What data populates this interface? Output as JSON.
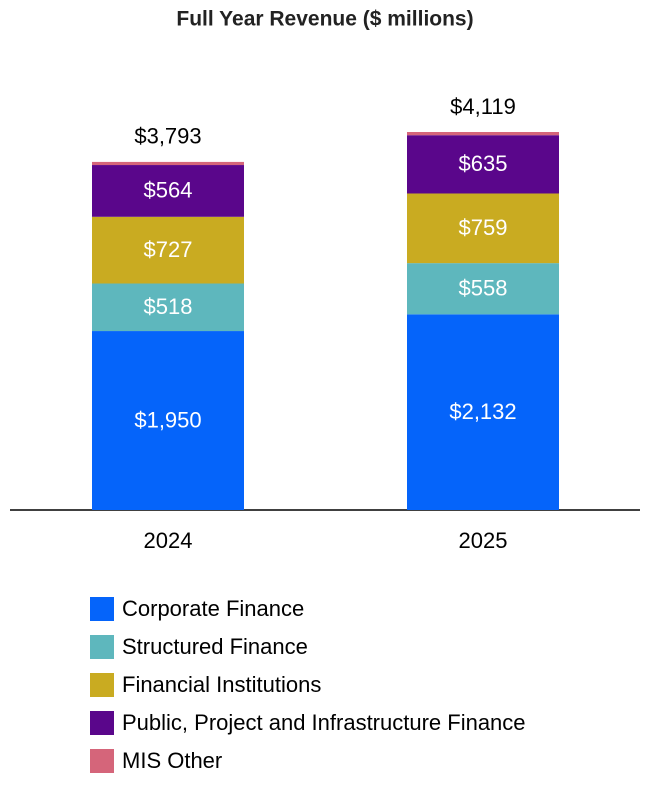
{
  "chart_data": {
    "type": "stacked-bar",
    "title": "Full Year Revenue ($ millions)",
    "categories": [
      "2024",
      "2025"
    ],
    "series": [
      {
        "name": "Corporate Finance",
        "color": "#0564fa",
        "values": [
          1950,
          2132
        ],
        "value_labels": [
          "$1,950",
          "$2,132"
        ]
      },
      {
        "name": "Structured Finance",
        "color": "#5eb7bd",
        "values": [
          518,
          558
        ],
        "value_labels": [
          "$518",
          "$558"
        ]
      },
      {
        "name": "Financial Institutions",
        "color": "#c9ab21",
        "values": [
          727,
          759
        ],
        "value_labels": [
          "$727",
          "$759"
        ]
      },
      {
        "name": "Public, Project and Infrastructure Finance",
        "color": "#5a068b",
        "values": [
          564,
          635
        ],
        "value_labels": [
          "$564",
          "$635"
        ]
      },
      {
        "name": "MIS Other",
        "color": "#d5657a",
        "values": [
          34,
          35
        ]
      }
    ],
    "totals": [
      3793,
      4119
    ],
    "total_labels": [
      "$3,793",
      "$4,119"
    ]
  }
}
